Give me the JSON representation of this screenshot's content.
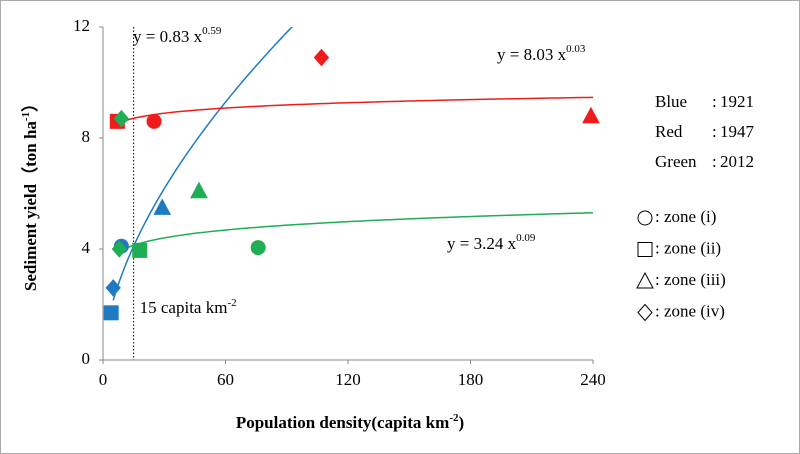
{
  "chart_data": {
    "type": "scatter",
    "xlabel": {
      "main": "Population density(capita km",
      "sup": "-2",
      "tail": ")"
    },
    "ylabel": {
      "main": "Sediment yield（ton ha",
      "sup": "-1",
      "tail": "）"
    },
    "xlim": [
      0,
      240
    ],
    "xticks": [
      0,
      60,
      120,
      180,
      240
    ],
    "ylim": [
      0,
      12
    ],
    "yticks": [
      0,
      4,
      8,
      12
    ],
    "grid": false,
    "series": [
      {
        "name": "Blue",
        "period": "1921",
        "color": "#1f7ac4",
        "markers": [
          "circle",
          "square",
          "triangle",
          "diamond"
        ],
        "x": [
          9,
          4,
          29,
          5
        ],
        "values": [
          4.1,
          1.7,
          5.5,
          2.6
        ]
      },
      {
        "name": "Red",
        "period": "1947",
        "color": "#f01c1c",
        "markers": [
          "circle",
          "square",
          "triangle",
          "diamond"
        ],
        "x": [
          25,
          7,
          239,
          107
        ],
        "values": [
          8.6,
          8.6,
          8.8,
          10.9
        ]
      },
      {
        "name": "Green",
        "period": "2012",
        "color": "#1fae54",
        "markers": [
          "circle",
          "square",
          "triangle",
          "diamond",
          "diamond"
        ],
        "x": [
          76,
          18,
          47,
          8,
          9
        ],
        "values": [
          4.05,
          3.95,
          6.1,
          4.0,
          8.7
        ]
      }
    ],
    "fits": [
      {
        "label": "y = 0.83 x",
        "a": 0.83,
        "b": 0.59,
        "xrange": [
          5,
          93
        ],
        "color": "#1f7ac4"
      },
      {
        "label": "y = 8.03 x",
        "a": 8.03,
        "b": 0.03,
        "xrange": [
          8,
          240
        ],
        "color": "#f01c1c"
      },
      {
        "label": "y = 3.24 x",
        "a": 3.24,
        "b": 0.09,
        "xrange": [
          8,
          240
        ],
        "color": "#1fae54"
      }
    ],
    "vline": {
      "x": 15,
      "label": "15 capita km",
      "sup": "-2"
    },
    "zones": [
      {
        "marker": "circle",
        "label": ": zone (i)"
      },
      {
        "marker": "square",
        "label": ": zone (ii)"
      },
      {
        "marker": "triangle",
        "label": ": zone (iii)"
      },
      {
        "marker": "diamond",
        "label": ": zone (iv)"
      }
    ]
  }
}
